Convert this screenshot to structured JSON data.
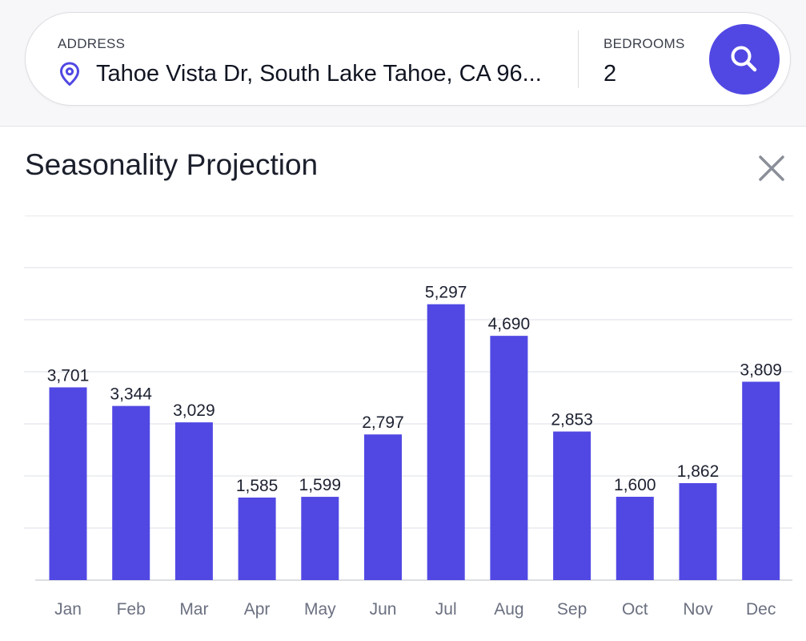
{
  "search": {
    "address_label": "ADDRESS",
    "address_value": "Tahoe Vista Dr, South Lake Tahoe, CA 96...",
    "bedrooms_label": "BEDROOMS",
    "bedrooms_value": "2",
    "search_button_icon": "search-icon",
    "location_icon": "map-pin-icon",
    "accent_color": "#5148e3"
  },
  "panel": {
    "title": "Seasonality Projection",
    "close_icon": "close-icon"
  },
  "chart_data": {
    "type": "bar",
    "categories": [
      "Jan",
      "Feb",
      "Mar",
      "Apr",
      "May",
      "Jun",
      "Jul",
      "Aug",
      "Sep",
      "Oct",
      "Nov",
      "Dec"
    ],
    "values": [
      3701,
      3344,
      3029,
      1585,
      1599,
      2797,
      5297,
      4690,
      2853,
      1600,
      1862,
      3809
    ],
    "value_labels": [
      "3,701",
      "3,344",
      "3,029",
      "1,585",
      "1,599",
      "2,797",
      "5,297",
      "4,690",
      "2,853",
      "1,600",
      "1,862",
      "3,809"
    ],
    "title": "",
    "xlabel": "",
    "ylabel": "",
    "ylim": [
      0,
      6000
    ],
    "gridlines": [
      0,
      1000,
      2000,
      3000,
      4000,
      5000,
      6000
    ],
    "grid": true,
    "bar_color": "#5148e3"
  }
}
